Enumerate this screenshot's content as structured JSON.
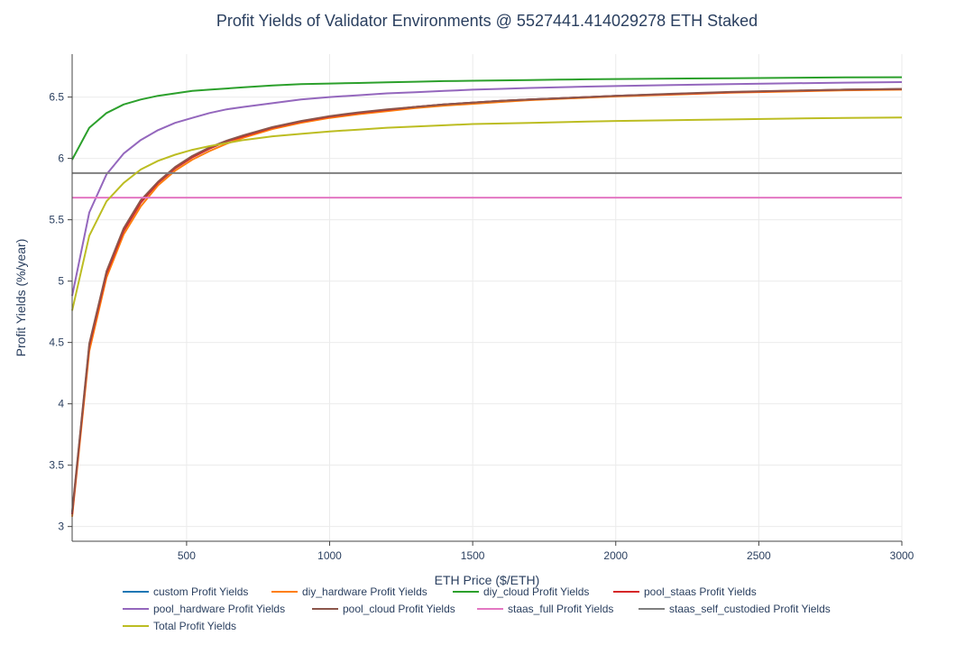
{
  "chart_data": {
    "type": "line",
    "title": "Profit Yields of Validator Environments @ 5527441.414029278 ETH Staked",
    "xlabel": "ETH Price ($/ETH)",
    "ylabel": "Profit Yields (%/year)",
    "xlim": [
      100,
      3000
    ],
    "ylim": [
      2.88,
      6.85
    ],
    "x_ticks": [
      500,
      1000,
      1500,
      2000,
      2500,
      3000
    ],
    "y_ticks": [
      3,
      3.5,
      4,
      4.5,
      5,
      5.5,
      6,
      6.5
    ],
    "grid": true,
    "legend_position": "bottom",
    "x": [
      100,
      160,
      220,
      280,
      340,
      400,
      460,
      520,
      580,
      640,
      700,
      800,
      900,
      1000,
      1100,
      1200,
      1300,
      1400,
      1500,
      1600,
      1700,
      1800,
      1900,
      2000,
      2200,
      2400,
      2600,
      2800,
      3000
    ],
    "series": [
      {
        "name": "custom Profit Yields",
        "color": "#1f77b4",
        "values": [
          3.1,
          4.47,
          5.06,
          5.41,
          5.64,
          5.8,
          5.92,
          6.01,
          6.08,
          6.14,
          6.18,
          6.25,
          6.3,
          6.34,
          6.37,
          6.395,
          6.42,
          6.44,
          6.455,
          6.47,
          6.48,
          6.49,
          6.5,
          6.51,
          6.525,
          6.54,
          6.55,
          6.56,
          6.565
        ]
      },
      {
        "name": "diy_hardware Profit Yields",
        "color": "#ff7f0e",
        "values": [
          3.08,
          4.43,
          5.03,
          5.38,
          5.61,
          5.78,
          5.9,
          5.99,
          6.06,
          6.12,
          6.17,
          6.24,
          6.29,
          6.33,
          6.36,
          6.385,
          6.41,
          6.43,
          6.445,
          6.46,
          6.475,
          6.485,
          6.495,
          6.505,
          6.52,
          6.535,
          6.545,
          6.555,
          6.56
        ]
      },
      {
        "name": "diy_cloud Profit Yields",
        "color": "#2ca02c",
        "values": [
          5.99,
          6.25,
          6.37,
          6.44,
          6.48,
          6.51,
          6.53,
          6.55,
          6.56,
          6.57,
          6.58,
          6.595,
          6.605,
          6.61,
          6.615,
          6.62,
          6.625,
          6.63,
          6.633,
          6.636,
          6.639,
          6.642,
          6.645,
          6.647,
          6.651,
          6.654,
          6.657,
          6.66,
          6.662
        ]
      },
      {
        "name": "pool_staas Profit Yields",
        "color": "#d62728",
        "values": [
          3.1,
          4.47,
          5.06,
          5.41,
          5.64,
          5.8,
          5.92,
          6.01,
          6.08,
          6.14,
          6.18,
          6.25,
          6.3,
          6.34,
          6.37,
          6.395,
          6.42,
          6.44,
          6.455,
          6.47,
          6.48,
          6.49,
          6.5,
          6.51,
          6.525,
          6.54,
          6.55,
          6.56,
          6.565
        ]
      },
      {
        "name": "pool_hardware Profit Yields",
        "color": "#9467bd",
        "values": [
          4.88,
          5.56,
          5.87,
          6.04,
          6.15,
          6.23,
          6.29,
          6.33,
          6.37,
          6.4,
          6.42,
          6.45,
          6.48,
          6.5,
          6.515,
          6.53,
          6.54,
          6.55,
          6.56,
          6.567,
          6.574,
          6.58,
          6.585,
          6.59,
          6.598,
          6.606,
          6.612,
          6.618,
          6.622
        ]
      },
      {
        "name": "pool_cloud Profit Yields",
        "color": "#8c564b",
        "values": [
          3.12,
          4.49,
          5.08,
          5.43,
          5.66,
          5.81,
          5.93,
          6.02,
          6.09,
          6.145,
          6.19,
          6.255,
          6.305,
          6.345,
          6.375,
          6.4,
          6.42,
          6.44,
          6.455,
          6.47,
          6.48,
          6.49,
          6.5,
          6.51,
          6.527,
          6.542,
          6.552,
          6.56,
          6.566
        ]
      },
      {
        "name": "staas_full Profit Yields",
        "color": "#e377c2",
        "values": [
          5.68,
          5.68,
          5.68,
          5.68,
          5.68,
          5.68,
          5.68,
          5.68,
          5.68,
          5.68,
          5.68,
          5.68,
          5.68,
          5.68,
          5.68,
          5.68,
          5.68,
          5.68,
          5.68,
          5.68,
          5.68,
          5.68,
          5.68,
          5.68,
          5.68,
          5.68,
          5.68,
          5.68,
          5.68
        ]
      },
      {
        "name": "staas_self_custodied Profit Yields",
        "color": "#7f7f7f",
        "values": [
          5.88,
          5.88,
          5.88,
          5.88,
          5.88,
          5.88,
          5.88,
          5.88,
          5.88,
          5.88,
          5.88,
          5.88,
          5.88,
          5.88,
          5.88,
          5.88,
          5.88,
          5.88,
          5.88,
          5.88,
          5.88,
          5.88,
          5.88,
          5.88,
          5.88,
          5.88,
          5.88,
          5.88,
          5.88
        ]
      },
      {
        "name": "Total Profit Yields",
        "color": "#bcbd22",
        "values": [
          4.76,
          5.37,
          5.65,
          5.8,
          5.91,
          5.98,
          6.03,
          6.07,
          6.1,
          6.125,
          6.15,
          6.18,
          6.2,
          6.22,
          6.235,
          6.25,
          6.26,
          6.27,
          6.28,
          6.285,
          6.29,
          6.295,
          6.3,
          6.305,
          6.312,
          6.318,
          6.324,
          6.33,
          6.334
        ]
      }
    ]
  }
}
